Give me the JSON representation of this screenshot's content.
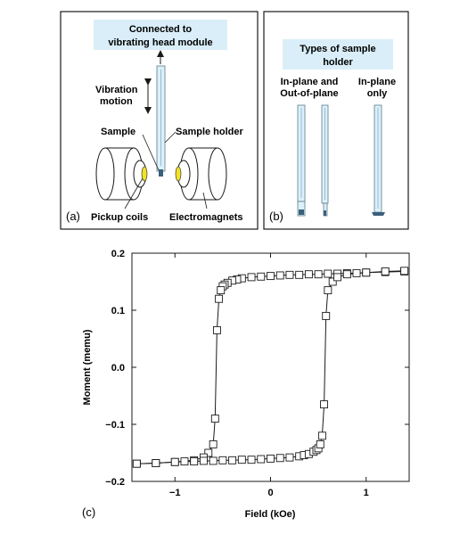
{
  "panel_a": {
    "label": "(a)",
    "connected_line1": "Connected to",
    "connected_line2": "vibrating head module",
    "vibration_line1": "Vibration",
    "vibration_line2": "motion",
    "sample": "Sample",
    "sample_holder": "Sample holder",
    "pickup_coils": "Pickup coils",
    "electromagnets": "Electromagnets"
  },
  "panel_b": {
    "label": "(b)",
    "title_line1": "Types of sample",
    "title_line2": "holder",
    "col1_line1": "In-plane and",
    "col1_line2": "Out-of-plane",
    "col2_line1": "In-plane",
    "col2_line2": "only"
  },
  "colors": {
    "callout_fill": "#d9eef8",
    "holder_fill": "#dcf0fa",
    "coil_yellow": "#f2e22a",
    "magnet_fill": "#ffffff"
  },
  "chart_data": {
    "type": "scatter",
    "panel_label": "(c)",
    "xlabel": "Field (kOe)",
    "ylabel": "Moment (memu)",
    "xlim": [
      -1.45,
      1.45
    ],
    "ylim": [
      -0.2,
      0.2
    ],
    "xticks": [
      "−1",
      "0",
      "1"
    ],
    "xtick_values": [
      -1,
      0,
      1
    ],
    "yticks": [
      "0.2",
      "0.1",
      "0.0",
      "−0.1",
      "−0.2"
    ],
    "ytick_values": [
      0.2,
      0.1,
      0.0,
      -0.1,
      -0.2
    ],
    "grid": false,
    "series": [
      {
        "branch": "descending",
        "x": [
          1.4,
          1.2,
          1.0,
          0.9,
          0.8,
          0.7,
          0.6,
          0.5,
          0.4,
          0.3,
          0.2,
          0.1,
          0.0,
          -0.1,
          -0.2,
          -0.3,
          -0.35,
          -0.4,
          -0.45,
          -0.48,
          -0.5,
          -0.52,
          -0.54,
          -0.56,
          -0.58,
          -0.6,
          -0.65,
          -0.7,
          -0.8,
          -1.0,
          -1.2,
          -1.4
        ],
        "y": [
          0.168,
          0.167,
          0.166,
          0.165,
          0.165,
          0.164,
          0.164,
          0.163,
          0.163,
          0.162,
          0.162,
          0.161,
          0.16,
          0.159,
          0.158,
          0.156,
          0.154,
          0.152,
          0.148,
          0.145,
          0.142,
          0.135,
          0.12,
          0.065,
          -0.09,
          -0.135,
          -0.15,
          -0.158,
          -0.163,
          -0.166,
          -0.168,
          -0.169
        ]
      },
      {
        "branch": "ascending",
        "x": [
          -1.4,
          -1.2,
          -1.0,
          -0.9,
          -0.8,
          -0.7,
          -0.6,
          -0.5,
          -0.4,
          -0.3,
          -0.2,
          -0.1,
          0.0,
          0.1,
          0.2,
          0.3,
          0.35,
          0.4,
          0.45,
          0.48,
          0.5,
          0.52,
          0.54,
          0.56,
          0.58,
          0.6,
          0.65,
          0.7,
          0.8,
          1.0,
          1.2,
          1.4
        ],
        "y": [
          -0.169,
          -0.168,
          -0.166,
          -0.165,
          -0.165,
          -0.164,
          -0.164,
          -0.163,
          -0.163,
          -0.162,
          -0.162,
          -0.161,
          -0.16,
          -0.159,
          -0.158,
          -0.156,
          -0.154,
          -0.152,
          -0.148,
          -0.145,
          -0.142,
          -0.135,
          -0.12,
          -0.065,
          0.09,
          0.135,
          0.15,
          0.158,
          0.163,
          0.166,
          0.168,
          0.169
        ]
      }
    ]
  }
}
